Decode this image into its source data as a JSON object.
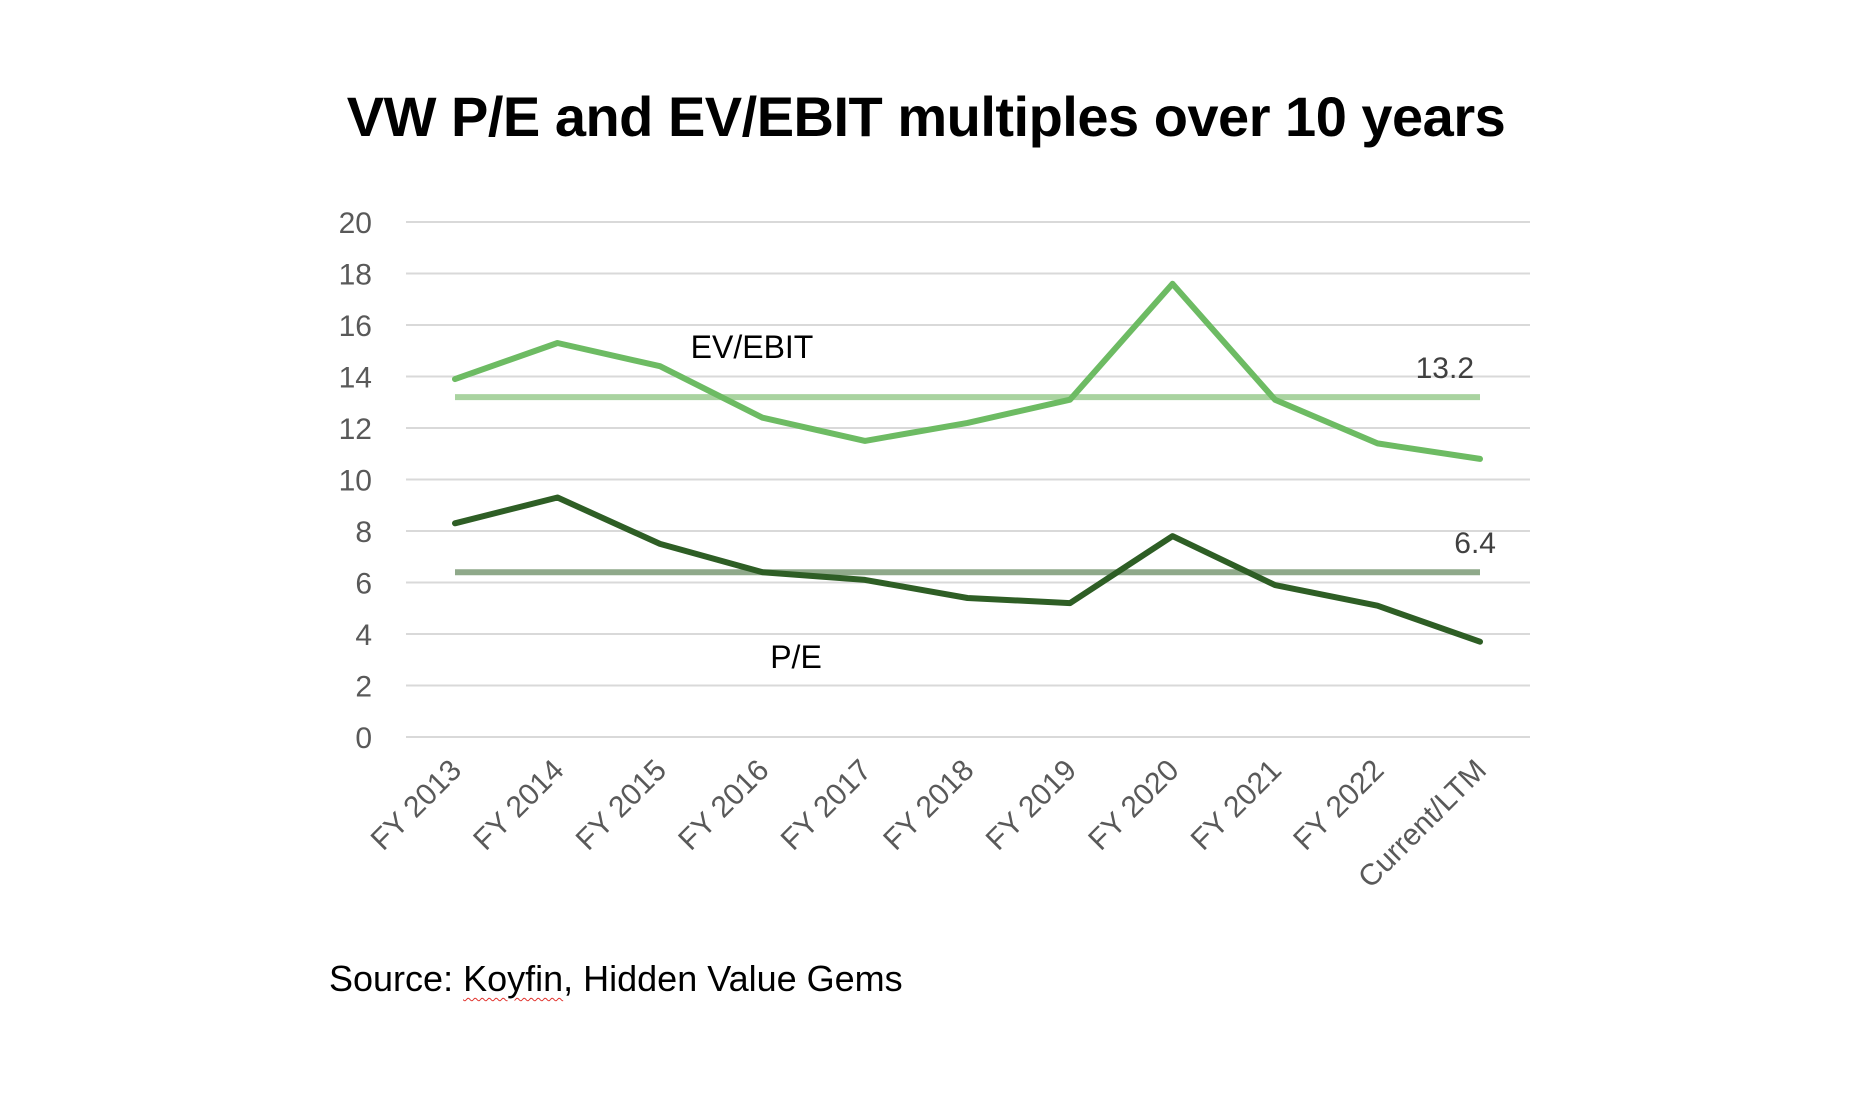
{
  "chart_data": {
    "type": "line",
    "title": "VW P/E and EV/EBIT multiples over 10 years",
    "xlabel": "",
    "ylabel": "",
    "categories": [
      "FY 2013",
      "FY 2014",
      "FY 2015",
      "FY 2016",
      "FY 2017",
      "FY 2018",
      "FY 2019",
      "FY 2020",
      "FY 2021",
      "FY 2022",
      "Current/LTM"
    ],
    "ylim": [
      0,
      20
    ],
    "yticks": [
      0,
      2,
      4,
      6,
      8,
      10,
      12,
      14,
      16,
      18,
      20
    ],
    "grid": true,
    "legend": "none",
    "series": [
      {
        "name": "EV/EBIT",
        "color": "#6dbb63",
        "values": [
          13.9,
          15.3,
          14.4,
          12.4,
          11.5,
          12.2,
          13.1,
          17.6,
          13.1,
          11.4,
          10.8
        ]
      },
      {
        "name": "P/E",
        "color": "#2e5e25",
        "values": [
          8.3,
          9.3,
          7.5,
          6.4,
          6.1,
          5.4,
          5.2,
          7.8,
          5.9,
          5.1,
          3.7
        ]
      }
    ],
    "averages": [
      {
        "series": "EV/EBIT",
        "value": 13.2,
        "label": "13.2",
        "color": "#a9d3a0"
      },
      {
        "series": "P/E",
        "value": 6.4,
        "label": "6.4",
        "color": "#8fa98a"
      }
    ]
  },
  "source": {
    "prefix": "Source: ",
    "brand": "Koyfin",
    "rest": ", Hidden Value Gems"
  }
}
